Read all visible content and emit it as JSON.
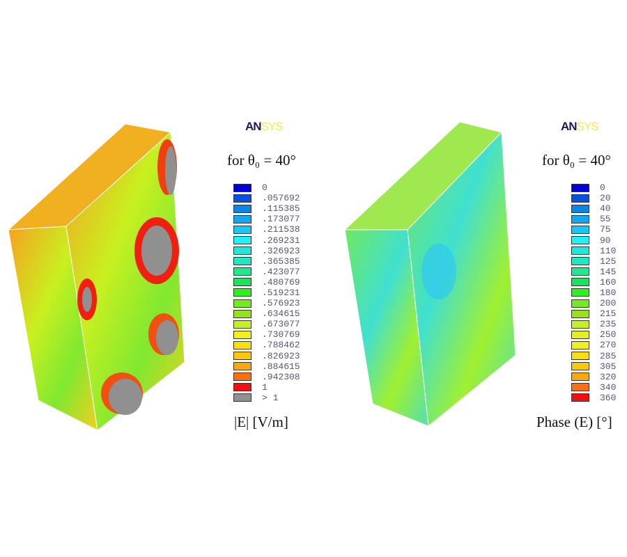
{
  "panels": [
    {
      "logo_a": "AN",
      "logo_b": "SYS",
      "condition": "for θ₀ = 40°",
      "caption": "|E| [V/m]",
      "legend": [
        {
          "label": "0",
          "color": "#0000d8"
        },
        {
          "label": ".057692",
          "color": "#0a50e0"
        },
        {
          "label": ".115385",
          "color": "#0a84e8"
        },
        {
          "label": ".173077",
          "color": "#10a8f0"
        },
        {
          "label": ".211538",
          "color": "#18c8f0"
        },
        {
          "label": ".269231",
          "color": "#20f0f8"
        },
        {
          "label": ".326923",
          "color": "#20e8d8"
        },
        {
          "label": ".365385",
          "color": "#20e8c0"
        },
        {
          "label": ".423077",
          "color": "#20e890"
        },
        {
          "label": ".480769",
          "color": "#20e060"
        },
        {
          "label": ".519231",
          "color": "#30f020"
        },
        {
          "label": ".576923",
          "color": "#78e820"
        },
        {
          "label": ".634615",
          "color": "#98e020"
        },
        {
          "label": ".673077",
          "color": "#c8f020"
        },
        {
          "label": ".730769",
          "color": "#f0f020"
        },
        {
          "label": ".788462",
          "color": "#f8e010"
        },
        {
          "label": ".826923",
          "color": "#f8c810"
        },
        {
          "label": ".884615",
          "color": "#f8a810"
        },
        {
          "label": ".942308",
          "color": "#f87010"
        },
        {
          "label": "1",
          "color": "#f01010"
        },
        {
          "label": "> 1",
          "color": "#909090"
        }
      ]
    },
    {
      "logo_a": "AN",
      "logo_b": "SYS",
      "condition": "for θ₀ = 40°",
      "caption": "Phase (E) [°]",
      "legend": [
        {
          "label": "0",
          "color": "#0000d8"
        },
        {
          "label": "20",
          "color": "#0a50e0"
        },
        {
          "label": "40",
          "color": "#0a84e8"
        },
        {
          "label": "55",
          "color": "#10a8f0"
        },
        {
          "label": "75",
          "color": "#18c8f0"
        },
        {
          "label": "90",
          "color": "#20f0f8"
        },
        {
          "label": "110",
          "color": "#20e8d8"
        },
        {
          "label": "125",
          "color": "#20e8c0"
        },
        {
          "label": "145",
          "color": "#20e890"
        },
        {
          "label": "160",
          "color": "#20e060"
        },
        {
          "label": "180",
          "color": "#30f020"
        },
        {
          "label": "200",
          "color": "#78e820"
        },
        {
          "label": "215",
          "color": "#98e020"
        },
        {
          "label": "235",
          "color": "#c8f020"
        },
        {
          "label": "250",
          "color": "#e0f020"
        },
        {
          "label": "270",
          "color": "#f0f020"
        },
        {
          "label": "285",
          "color": "#f8e010"
        },
        {
          "label": "305",
          "color": "#f8c810"
        },
        {
          "label": "320",
          "color": "#f8a810"
        },
        {
          "label": "340",
          "color": "#f87010"
        },
        {
          "label": "360",
          "color": "#f01010"
        }
      ]
    }
  ]
}
